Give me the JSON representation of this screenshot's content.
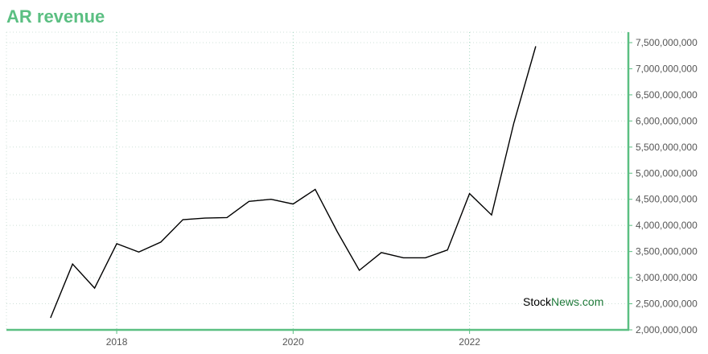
{
  "chart_data": {
    "type": "line",
    "title": "AR revenue",
    "xlabel": "",
    "ylabel": "",
    "y_ticks": [
      "2,000,000,000",
      "2,500,000,000",
      "3,000,000,000",
      "3,500,000,000",
      "4,000,000,000",
      "4,500,000,000",
      "5,000,000,000",
      "5,500,000,000",
      "6,000,000,000",
      "6,500,000,000",
      "7,000,000,000",
      "7,500,000,000"
    ],
    "x_ticks": [
      "2018",
      "2020",
      "2022"
    ],
    "ylim": [
      2000000000,
      7700000000
    ],
    "xlim": [
      2016.75,
      2023.8
    ],
    "grid": true,
    "legend": "none",
    "line_color": "#000000",
    "accent_color": "#5bbf82",
    "series": [
      {
        "x": [
          2017.25,
          2017.5,
          2017.75,
          2018.0,
          2018.25,
          2018.5,
          2018.75,
          2019.0,
          2019.25,
          2019.5,
          2019.75,
          2020.0,
          2020.25,
          2020.5,
          2020.75,
          2021.0,
          2021.25,
          2021.5,
          2021.75,
          2022.0,
          2022.25,
          2022.5,
          2022.75
        ],
        "values": [
          2230000000,
          3260000000,
          2800000000,
          3650000000,
          3490000000,
          3680000000,
          4110000000,
          4140000000,
          4150000000,
          4460000000,
          4500000000,
          4410000000,
          4690000000,
          3880000000,
          3140000000,
          3480000000,
          3380000000,
          3380000000,
          3530000000,
          4610000000,
          4200000000,
          5950000000,
          7430000000
        ]
      }
    ]
  },
  "watermark": {
    "part1": "Stock",
    "part2": "News",
    "part3": ".com"
  }
}
